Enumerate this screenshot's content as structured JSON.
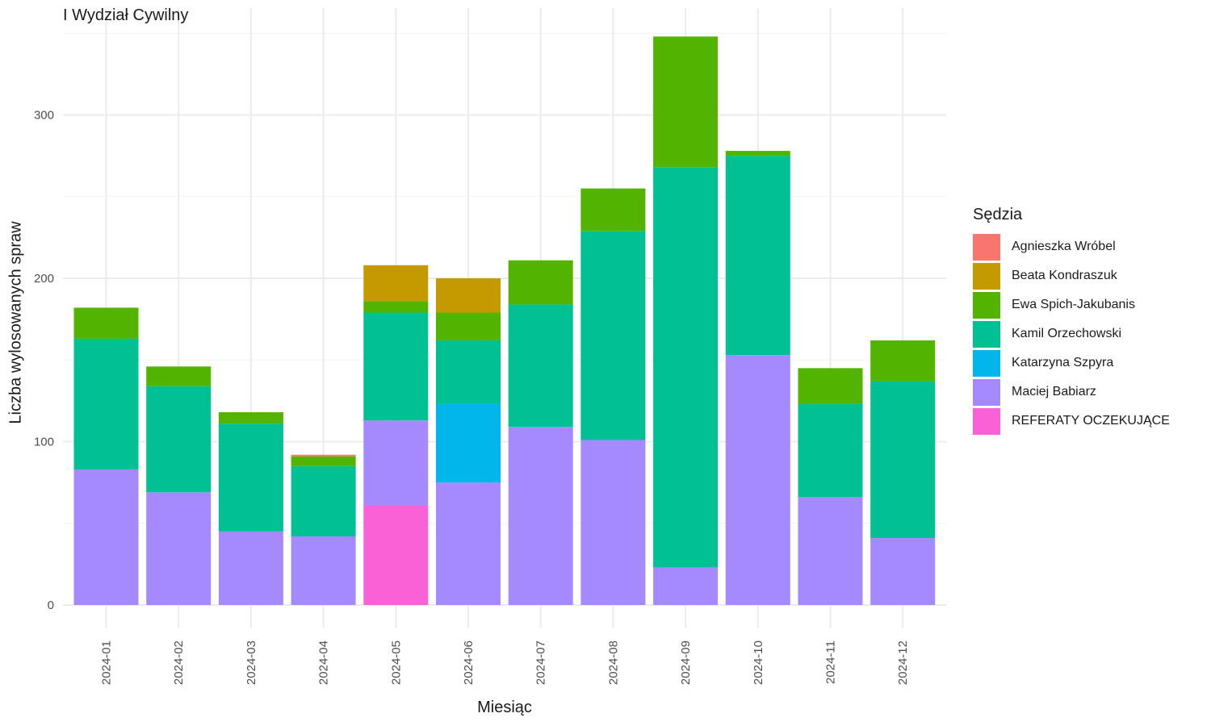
{
  "chart_data": {
    "type": "bar",
    "stacked": true,
    "title": "I Wydział Cywilny",
    "xlabel": "Miesiąc",
    "ylabel": "Liczba wylosowanych spraw",
    "ylim": [
      0,
      350
    ],
    "yticks": [
      0,
      100,
      200,
      300
    ],
    "grid": true,
    "legend_position": "right",
    "legend_title": "Sędzia",
    "categories": [
      "2024-01",
      "2024-02",
      "2024-03",
      "2024-04",
      "2024-05",
      "2024-06",
      "2024-07",
      "2024-08",
      "2024-09",
      "2024-10",
      "2024-11",
      "2024-12"
    ],
    "series": [
      {
        "name": "Agnieszka Wróbel",
        "color": "#F8766D",
        "values": [
          0,
          0,
          0,
          1,
          0,
          0,
          0,
          0,
          0,
          0,
          0,
          0
        ]
      },
      {
        "name": "Beata Kondraszuk",
        "color": "#C49A00",
        "values": [
          0,
          0,
          0,
          0,
          22,
          21,
          0,
          0,
          0,
          0,
          0,
          0
        ]
      },
      {
        "name": "Ewa Spich-Jakubanis",
        "color": "#53B400",
        "values": [
          19,
          12,
          7,
          6,
          7,
          17,
          27,
          26,
          80,
          3,
          22,
          25
        ]
      },
      {
        "name": "Kamil Orzechowski",
        "color": "#00C094",
        "values": [
          80,
          65,
          66,
          43,
          66,
          39,
          75,
          128,
          245,
          122,
          57,
          96
        ]
      },
      {
        "name": "Katarzyna Szpyra",
        "color": "#00B6EB",
        "values": [
          0,
          0,
          0,
          0,
          0,
          48,
          0,
          0,
          0,
          0,
          0,
          0
        ]
      },
      {
        "name": "Maciej Babiarz",
        "color": "#A58AFF",
        "values": [
          83,
          69,
          45,
          42,
          52,
          75,
          109,
          101,
          23,
          153,
          66,
          41
        ]
      },
      {
        "name": "REFERATY OCZEKUJĄCE",
        "color": "#FB61D7",
        "values": [
          0,
          0,
          0,
          0,
          61,
          0,
          0,
          0,
          0,
          0,
          0,
          0
        ]
      }
    ]
  }
}
